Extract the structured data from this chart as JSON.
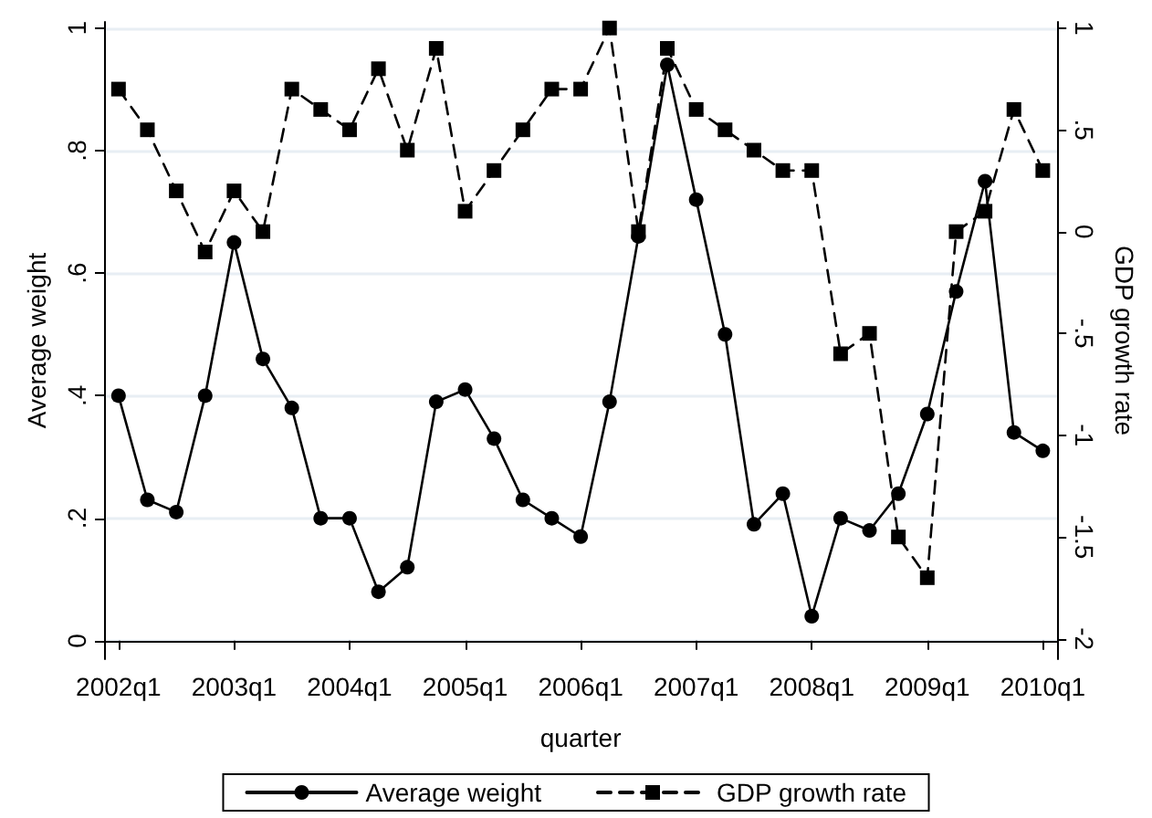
{
  "chart_data": {
    "type": "line",
    "xlabel": "quarter",
    "ylabel": "Average weight",
    "y2label": "GDP growth rate",
    "categories": [
      "2002q1",
      null,
      null,
      null,
      "2003q1",
      null,
      null,
      null,
      "2004q1",
      null,
      null,
      null,
      "2005q1",
      null,
      null,
      null,
      "2006q1",
      null,
      null,
      null,
      "2007q1",
      null,
      null,
      null,
      "2008q1",
      null,
      null,
      null,
      "2009q1",
      null,
      null,
      null,
      "2010q1"
    ],
    "series": [
      {
        "name": "Average weight",
        "color": "#000000",
        "marker": "circle",
        "line_style": "solid",
        "values": [
          0.4,
          0.23,
          0.21,
          0.4,
          0.65,
          0.46,
          0.38,
          0.2,
          0.2,
          0.08,
          0.12,
          0.39,
          0.41,
          0.33,
          0.23,
          0.2,
          0.17,
          0.39,
          0.66,
          0.94,
          0.72,
          0.5,
          0.19,
          0.24,
          0.04,
          0.2,
          0.18,
          0.24,
          0.37,
          0.57,
          0.75,
          0.34,
          0.31
        ]
      },
      {
        "name": "GDP growth rate",
        "color": "#000000",
        "marker": "square",
        "line_style": "dashed",
        "axis": "y2",
        "values": [
          0.7,
          0.5,
          0.2,
          -0.1,
          0.2,
          0,
          0.7,
          0.6,
          0.5,
          0.8,
          0.4,
          0.9,
          0.1,
          0.3,
          0.5,
          0.7,
          0.7,
          1.0,
          0,
          0.9,
          0.6,
          0.5,
          0.4,
          0.3,
          0.3,
          -0.6,
          -0.5,
          -1.5,
          -1.7,
          0,
          0.1,
          0.6,
          0.3
        ]
      }
    ],
    "ylim": [
      -0.03,
      1.01
    ],
    "yticks": [
      0,
      {
        "value": 0.2,
        "label": ".2"
      },
      {
        "value": 0.4,
        "label": ".4"
      },
      {
        "value": 0.6,
        "label": ".6"
      },
      {
        "value": 0.8,
        "label": ".8"
      },
      1
    ],
    "y2lim": [
      -2.1,
      1.03
    ],
    "y2ticks": [
      -2,
      -1.5,
      -1,
      {
        "value": -0.5,
        "label": "-.5"
      },
      0,
      {
        "value": 0.5,
        "label": ".5"
      },
      1
    ],
    "grid": "y",
    "legend": "bottom"
  }
}
